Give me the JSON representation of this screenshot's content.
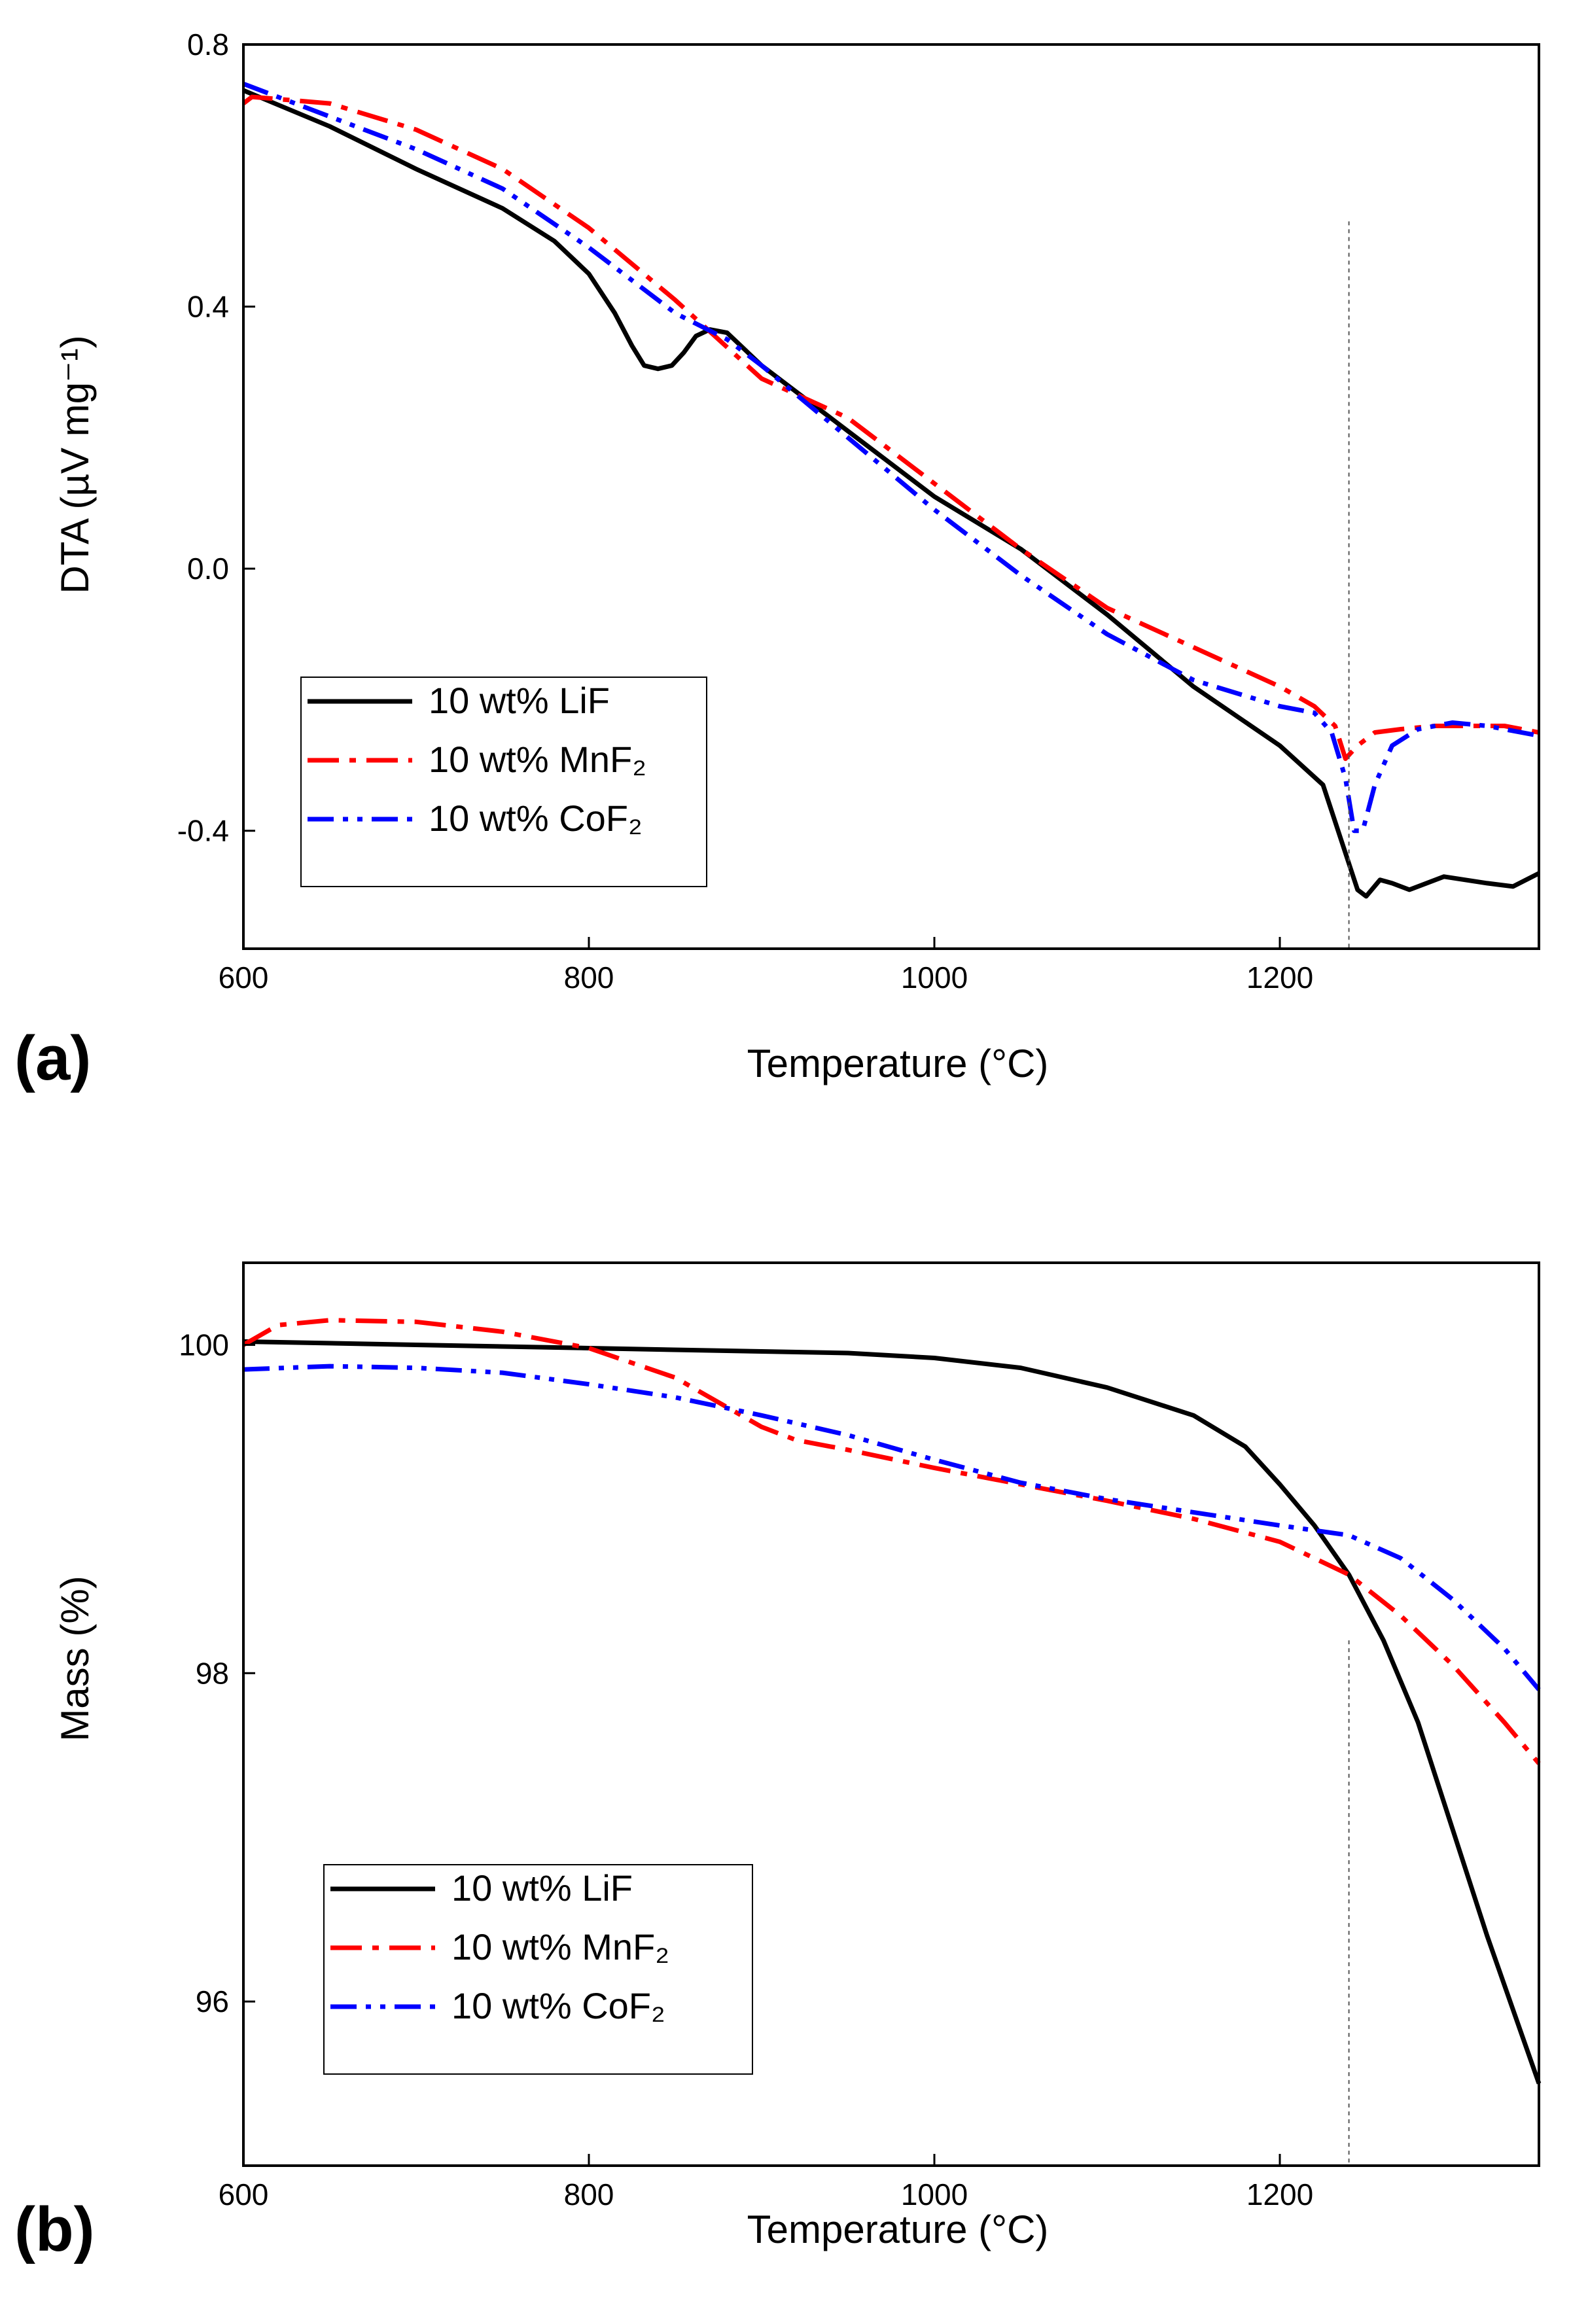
{
  "chart_data": [
    {
      "panel_label": "(a)",
      "type": "line",
      "xlabel": "Temperature (°C)",
      "ylabel": "DTA (µV mg⁻¹)",
      "xlim": [
        600,
        1350
      ],
      "ylim": [
        -0.58,
        0.8
      ],
      "xticks": [
        600,
        800,
        1000,
        1200
      ],
      "yticks": [
        -0.4,
        0.0,
        0.4,
        0.8
      ],
      "xtick_labels": [
        "600",
        "800",
        "1000",
        "1200"
      ],
      "ytick_labels": [
        "-0.4",
        "0.0",
        "0.4",
        "0.8"
      ],
      "legend_position": "bottom-left",
      "reference_line_x": 1240,
      "series": [
        {
          "name": "10 wt% LiF",
          "color": "#000000",
          "dash": "solid",
          "x": [
            600,
            650,
            700,
            750,
            780,
            800,
            815,
            825,
            832,
            840,
            848,
            855,
            862,
            870,
            880,
            900,
            950,
            1000,
            1050,
            1100,
            1150,
            1200,
            1225,
            1235,
            1245,
            1250,
            1258,
            1265,
            1275,
            1295,
            1320,
            1335,
            1350
          ],
          "y": [
            0.73,
            0.675,
            0.61,
            0.55,
            0.5,
            0.45,
            0.39,
            0.34,
            0.31,
            0.305,
            0.31,
            0.33,
            0.355,
            0.365,
            0.36,
            0.31,
            0.21,
            0.11,
            0.03,
            -0.07,
            -0.18,
            -0.27,
            -0.33,
            -0.41,
            -0.49,
            -0.5,
            -0.475,
            -0.48,
            -0.49,
            -0.47,
            -0.48,
            -0.485,
            -0.465
          ]
        },
        {
          "name": "10 wt% MnF₂",
          "color": "#ff0000",
          "dash": "dashdot",
          "x": [
            600,
            605,
            650,
            700,
            750,
            800,
            850,
            900,
            950,
            1000,
            1050,
            1100,
            1150,
            1200,
            1220,
            1232,
            1238,
            1245,
            1255,
            1270,
            1290,
            1310,
            1330,
            1350
          ],
          "y": [
            0.71,
            0.72,
            0.71,
            0.67,
            0.61,
            0.52,
            0.41,
            0.29,
            0.23,
            0.13,
            0.03,
            -0.06,
            -0.12,
            -0.18,
            -0.21,
            -0.24,
            -0.29,
            -0.27,
            -0.25,
            -0.245,
            -0.24,
            -0.24,
            -0.24,
            -0.25
          ]
        },
        {
          "name": "10 wt% CoF₂",
          "color": "#0000ff",
          "dash": "dashdotdot",
          "x": [
            600,
            650,
            700,
            750,
            800,
            850,
            880,
            900,
            950,
            1000,
            1050,
            1100,
            1150,
            1200,
            1220,
            1230,
            1238,
            1243,
            1248,
            1255,
            1265,
            1280,
            1300,
            1320,
            1350
          ],
          "y": [
            0.74,
            0.69,
            0.64,
            0.58,
            0.49,
            0.39,
            0.35,
            0.31,
            0.2,
            0.09,
            -0.01,
            -0.1,
            -0.17,
            -0.21,
            -0.22,
            -0.25,
            -0.32,
            -0.4,
            -0.4,
            -0.33,
            -0.27,
            -0.245,
            -0.235,
            -0.24,
            -0.255
          ]
        }
      ]
    },
    {
      "panel_label": "(b)",
      "type": "line",
      "xlabel": "Temperature (°C)",
      "ylabel": "Mass (%)",
      "xlim": [
        600,
        1350
      ],
      "ylim": [
        95.0,
        100.5
      ],
      "xticks": [
        600,
        800,
        1000,
        1200
      ],
      "yticks": [
        96,
        98,
        100
      ],
      "xtick_labels": [
        "600",
        "800",
        "1000",
        "1200"
      ],
      "ytick_labels": [
        "96",
        "98",
        "100"
      ],
      "legend_position": "bottom-left",
      "reference_line_x": 1240,
      "series": [
        {
          "name": "10 wt% LiF",
          "color": "#000000",
          "dash": "solid",
          "x": [
            600,
            700,
            800,
            900,
            950,
            1000,
            1050,
            1100,
            1150,
            1180,
            1200,
            1220,
            1240,
            1260,
            1280,
            1300,
            1320,
            1340,
            1350
          ],
          "y": [
            100.02,
            100.0,
            99.98,
            99.96,
            99.95,
            99.92,
            99.86,
            99.74,
            99.57,
            99.38,
            99.15,
            98.9,
            98.6,
            98.2,
            97.7,
            97.05,
            96.4,
            95.8,
            95.5
          ]
        },
        {
          "name": "10 wt% MnF₂",
          "color": "#ff0000",
          "dash": "dashdot",
          "x": [
            600,
            620,
            650,
            700,
            750,
            800,
            850,
            880,
            900,
            920,
            950,
            1000,
            1050,
            1100,
            1150,
            1200,
            1240,
            1270,
            1300,
            1330,
            1350
          ],
          "y": [
            100.0,
            100.12,
            100.15,
            100.14,
            100.08,
            99.98,
            99.8,
            99.62,
            99.5,
            99.42,
            99.36,
            99.25,
            99.15,
            99.05,
            98.94,
            98.8,
            98.6,
            98.35,
            98.05,
            97.7,
            97.45
          ]
        },
        {
          "name": "10 wt% CoF₂",
          "color": "#0000ff",
          "dash": "dashdotdot",
          "x": [
            600,
            650,
            700,
            750,
            800,
            850,
            900,
            950,
            1000,
            1050,
            1100,
            1150,
            1200,
            1240,
            1270,
            1300,
            1330,
            1350
          ],
          "y": [
            99.85,
            99.87,
            99.86,
            99.83,
            99.76,
            99.68,
            99.57,
            99.45,
            99.3,
            99.16,
            99.06,
            98.98,
            98.9,
            98.84,
            98.7,
            98.45,
            98.15,
            97.9
          ]
        }
      ]
    }
  ]
}
